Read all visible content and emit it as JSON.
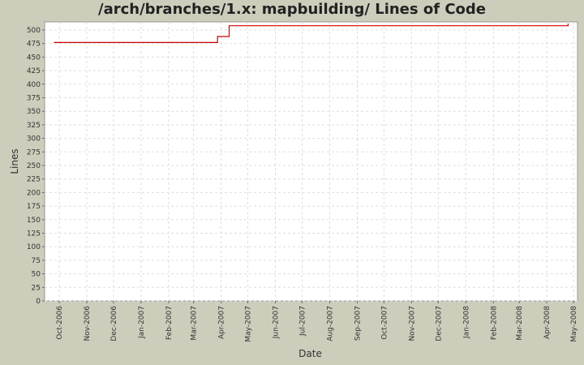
{
  "title": "/arch/branches/1.x: mapbuilding/ Lines of Code",
  "chart_data": {
    "type": "line",
    "title": "/arch/branches/1.x: mapbuilding/ Lines of Code",
    "xlabel": "Date",
    "ylabel": "Lines",
    "ylim": [
      0,
      510
    ],
    "grid": true,
    "legend": "none",
    "y_ticks": [
      0,
      25,
      50,
      75,
      100,
      125,
      150,
      175,
      200,
      225,
      250,
      275,
      300,
      325,
      350,
      375,
      400,
      425,
      450,
      475,
      500
    ],
    "x_ticks": [
      "Oct-2006",
      "Nov-2006",
      "Dec-2006",
      "Jan-2007",
      "Feb-2007",
      "Mar-2007",
      "Apr-2007",
      "May-2007",
      "Jun-2007",
      "Jul-2007",
      "Aug-2007",
      "Sep-2007",
      "Oct-2007",
      "Nov-2007",
      "Dec-2007",
      "Jan-2008",
      "Feb-2008",
      "Mar-2008",
      "Apr-2008",
      "May-2008"
    ],
    "series": [
      {
        "name": "Lines of Code",
        "color": "#cc0000",
        "step": true,
        "points": [
          {
            "x": "2006-09-25",
            "y": 477
          },
          {
            "x": "2007-03-28",
            "y": 477
          },
          {
            "x": "2007-03-28",
            "y": 488
          },
          {
            "x": "2007-04-10",
            "y": 488
          },
          {
            "x": "2007-04-10",
            "y": 508
          },
          {
            "x": "2008-04-25",
            "y": 508
          },
          {
            "x": "2008-04-25",
            "y": 512
          }
        ]
      }
    ]
  }
}
